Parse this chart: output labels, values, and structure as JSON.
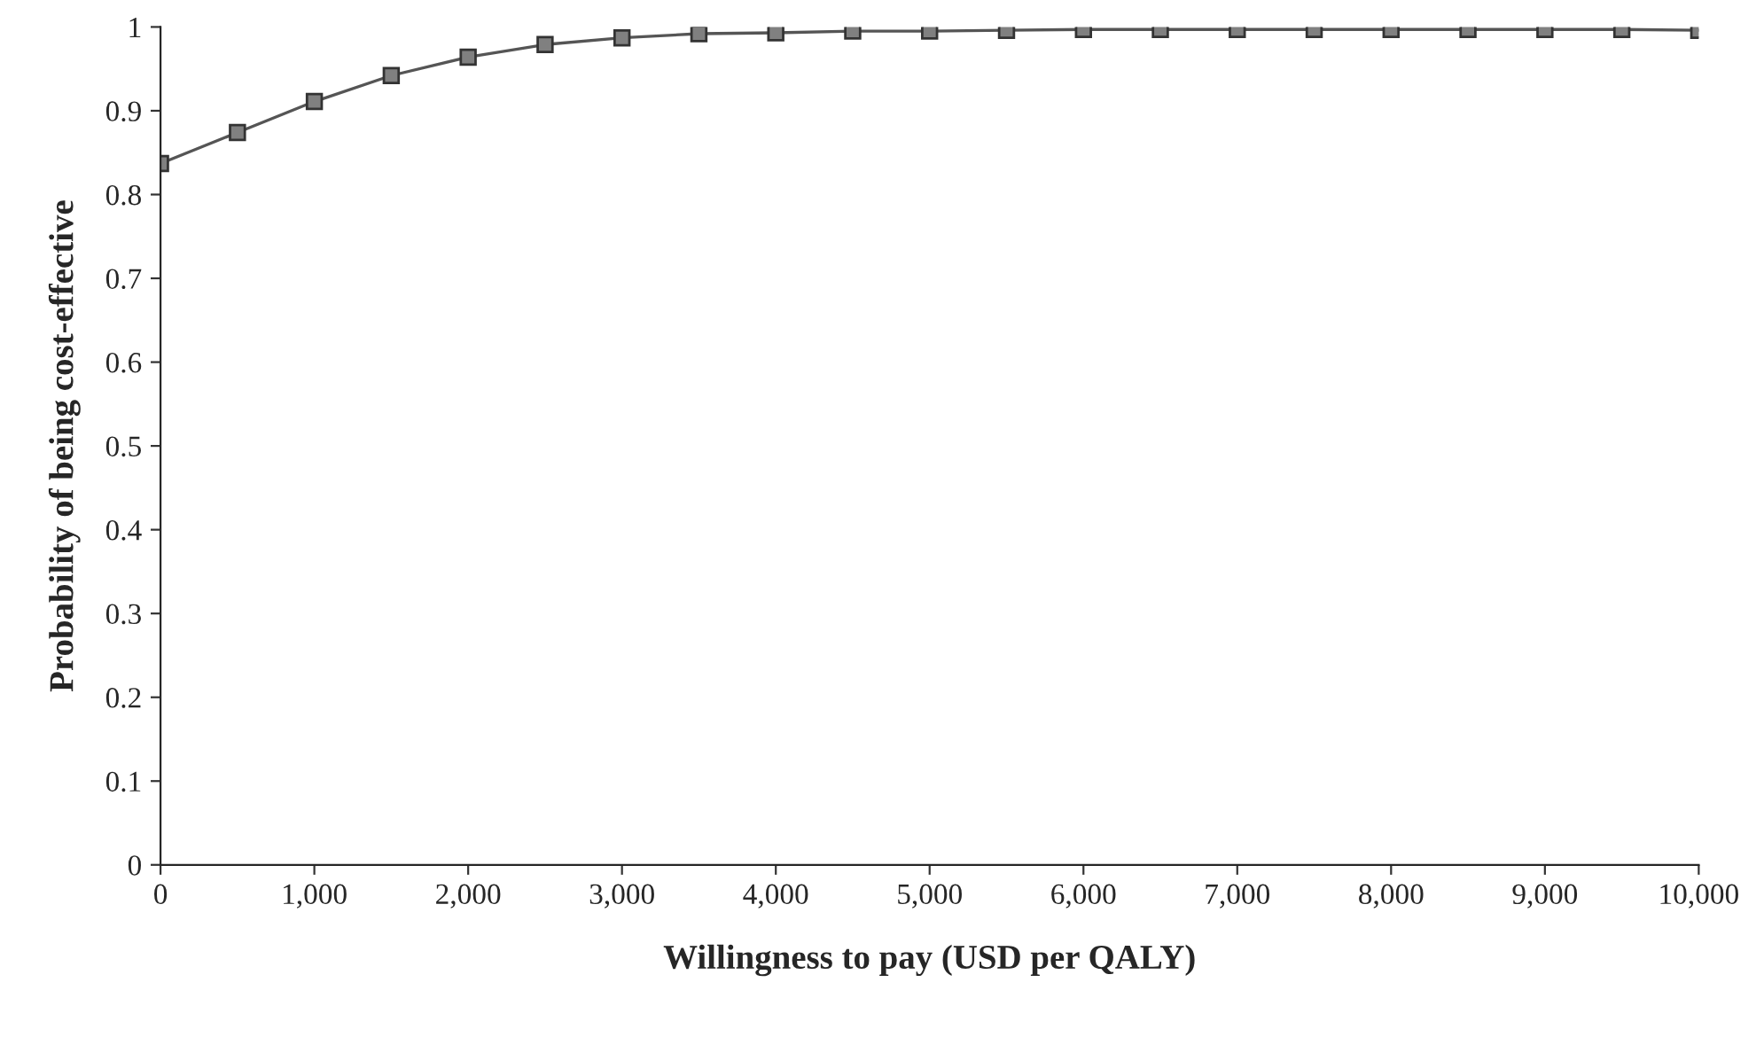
{
  "chart_data": {
    "type": "line",
    "xlabel": "Willingness to pay (USD per QALY)",
    "ylabel": "Probability of being cost-effective",
    "x": [
      0,
      500,
      1000,
      1500,
      2000,
      2500,
      3000,
      3500,
      4000,
      4500,
      5000,
      5500,
      6000,
      6500,
      7000,
      7500,
      8000,
      8500,
      9000,
      9500,
      10000
    ],
    "series": [
      {
        "color": "#808080",
        "values": [
          0.837,
          0.874,
          0.911,
          0.942,
          0.964,
          0.979,
          0.987,
          0.992,
          0.993,
          0.995,
          0.995,
          0.996,
          0.997,
          0.997,
          0.997,
          0.997,
          0.997,
          0.997,
          0.997,
          0.997,
          0.996
        ]
      }
    ],
    "xlim": [
      0,
      10000
    ],
    "ylim": [
      0,
      1
    ],
    "xticks": [
      0,
      {
        "value": 1000,
        "label": "1,000"
      },
      {
        "value": 2000,
        "label": "2,000"
      },
      {
        "value": 3000,
        "label": "3,000"
      },
      {
        "value": 4000,
        "label": "4,000"
      },
      {
        "value": 5000,
        "label": "5,000"
      },
      {
        "value": 6000,
        "label": "6,000"
      },
      {
        "value": 7000,
        "label": "7,000"
      },
      {
        "value": 8000,
        "label": "8,000"
      },
      {
        "value": 9000,
        "label": "9,000"
      },
      {
        "value": 10000,
        "label": "10,000"
      }
    ],
    "yticks": [
      0,
      0.1,
      0.2,
      0.3,
      0.4,
      0.5,
      0.6,
      0.7,
      0.8,
      0.9,
      1
    ],
    "marker": "square",
    "line_style": "solid",
    "grid": false,
    "legend": false
  }
}
